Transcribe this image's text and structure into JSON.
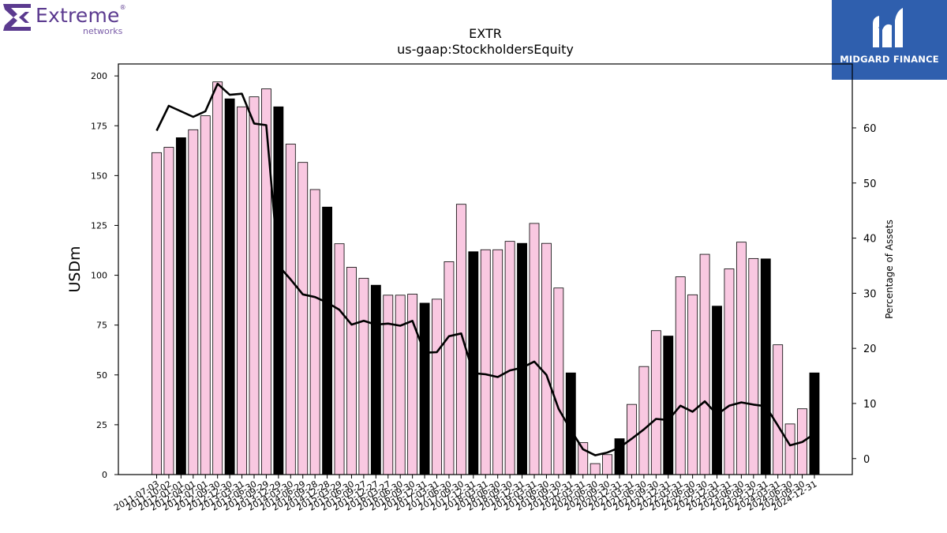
{
  "header": {
    "left_logo": {
      "brand": "Extreme",
      "sub": "networks",
      "reg": "®",
      "icon": "extreme-networks-logo-icon",
      "color": "#5b3a8f"
    },
    "right_logo": {
      "text": "MIDGARD FINANCE",
      "icon": "midgard-finance-logo-icon",
      "background": "#2f5fae"
    }
  },
  "chart_data": {
    "type": "bar",
    "title": "EXTR",
    "subtitle": "us-gaap:StockholdersEquity",
    "ylabel": "USDm",
    "y2label": "Percentage of Assets",
    "ylim": [
      0,
      206
    ],
    "y2lim": [
      -2.9,
      71.6
    ],
    "yticks": [
      0,
      25,
      50,
      75,
      100,
      125,
      150,
      175,
      200
    ],
    "y2ticks": [
      0,
      10,
      20,
      30,
      40,
      50,
      60
    ],
    "categories": [
      "2011-07-03",
      "2011-10-02",
      "2012-01-01",
      "2012-04-01",
      "2012-07-01",
      "2012-09-30",
      "2012-12-30",
      "2013-03-31",
      "2013-06-30",
      "2013-09-29",
      "2013-12-29",
      "2014-03-30",
      "2014-06-29",
      "2014-09-28",
      "2014-12-28",
      "2015-03-29",
      "2015-06-30",
      "2015-09-27",
      "2015-12-27",
      "2016-03-27",
      "2016-06-30",
      "2016-09-30",
      "2016-12-31",
      "2017-03-31",
      "2017-06-30",
      "2017-09-30",
      "2017-12-31",
      "2018-03-31",
      "2018-06-30",
      "2018-09-30",
      "2018-12-31",
      "2019-03-31",
      "2019-06-30",
      "2019-09-30",
      "2019-12-31",
      "2020-03-31",
      "2020-06-30",
      "2020-09-30",
      "2020-12-31",
      "2021-03-31",
      "2021-06-30",
      "2021-09-30",
      "2021-12-31",
      "2022-03-31",
      "2022-06-30",
      "2022-09-30",
      "2022-12-31",
      "2023-03-31",
      "2023-06-30",
      "2023-09-30",
      "2023-12-31",
      "2024-03-31",
      "2024-06-30",
      "2024-09-30",
      "2024-12-31"
    ],
    "shown_tick_labels": [
      "2011-07-03",
      "2011-10-02",
      "2012-01-01",
      "2012-04-01",
      "2012-07-01",
      "2012-09-30",
      "2012-12-30",
      "2013-03-31",
      "2013-06-30",
      "2013-09-29",
      "2013-12-29",
      "2014-03-30",
      "2014-06-29",
      "2014-09-28",
      "2014-12-28",
      "2015-03-29",
      "2015-06-30",
      "2015-09-27",
      "2015-12-27",
      "2016-03-27",
      "2016-06-30",
      "2016-09-30",
      "2016-12-31",
      "2017-03-31",
      "2017-06-30",
      "2017-09-30",
      "2017-12-31",
      "2018-03-31",
      "2018-06-30",
      "2018-09-30",
      "2018-12-31",
      "2019-03-31",
      "2019-06-30",
      "2019-09-30",
      "2019-12-31",
      "2020-03-31",
      "2020-06-30",
      "2020-09-30",
      "2020-12-31",
      "2021-03-31",
      "2021-06-30",
      "2021-09-30",
      "2021-12-31",
      "2022-03-31",
      "2022-06-30",
      "2022-09-30",
      "2022-12-31",
      "2023-03-31",
      "2023-06-30",
      "2023-09-30",
      "2023-12-31",
      "2024-03-31",
      "2024-06-30",
      "2024-09-30",
      "2024-12-31"
    ],
    "series": [
      {
        "values": [
          161.5,
          164.2,
          169.0,
          173.0,
          180.0,
          197.0,
          188.5,
          184.5,
          189.5,
          193.5,
          184.5,
          165.8,
          156.6,
          143.0,
          134.2,
          115.8,
          104.0,
          98.5,
          95.0,
          90.0,
          90.0,
          90.5,
          86.0,
          88.0,
          106.8,
          135.6,
          111.8,
          112.8,
          112.8,
          117.0,
          116.0,
          126.0,
          116.0,
          93.6,
          51.0,
          16.0,
          5.5,
          10.0,
          18.0,
          35.2,
          54.2,
          72.2,
          69.5,
          99.2,
          90.2,
          110.5,
          84.5,
          103.2,
          116.6,
          108.4,
          108.2,
          65.1,
          25.4,
          33.0,
          51.0
        ],
        "fiscal_year_end": [
          false,
          false,
          true,
          false,
          false,
          false,
          true,
          false,
          false,
          false,
          true,
          false,
          false,
          false,
          true,
          false,
          false,
          false,
          true,
          false,
          false,
          false,
          true,
          false,
          false,
          false,
          true,
          false,
          false,
          false,
          true,
          false,
          false,
          false,
          true,
          false,
          false,
          false,
          true,
          false,
          false,
          false,
          true,
          false,
          false,
          false,
          true,
          false,
          false,
          false,
          true,
          false,
          false,
          false,
          true
        ],
        "colors": {
          "quarter": "#f9c8e1",
          "fiscal_year_end": "#000000",
          "edge": "#000000"
        }
      },
      {
        "axis": "right",
        "values": [
          59.5,
          64.0,
          63.0,
          62.0,
          63.0,
          68.0,
          66.0,
          66.2,
          60.8,
          60.5,
          35.0,
          32.5,
          29.8,
          29.3,
          28.3,
          27.0,
          24.3,
          25.0,
          24.3,
          24.5,
          24.1,
          25.0,
          19.2,
          19.3,
          22.2,
          22.7,
          15.5,
          15.3,
          14.8,
          16.0,
          16.5,
          17.6,
          15.2,
          9.0,
          5.2,
          1.7,
          0.6,
          1.1,
          2.0,
          3.6,
          5.3,
          7.2,
          7.0,
          9.6,
          8.5,
          10.4,
          8.0,
          9.6,
          10.2,
          9.8,
          9.5,
          6.0,
          2.4,
          3.0,
          4.5
        ],
        "color": "#000000"
      }
    ],
    "grid": false,
    "legend": "none"
  }
}
